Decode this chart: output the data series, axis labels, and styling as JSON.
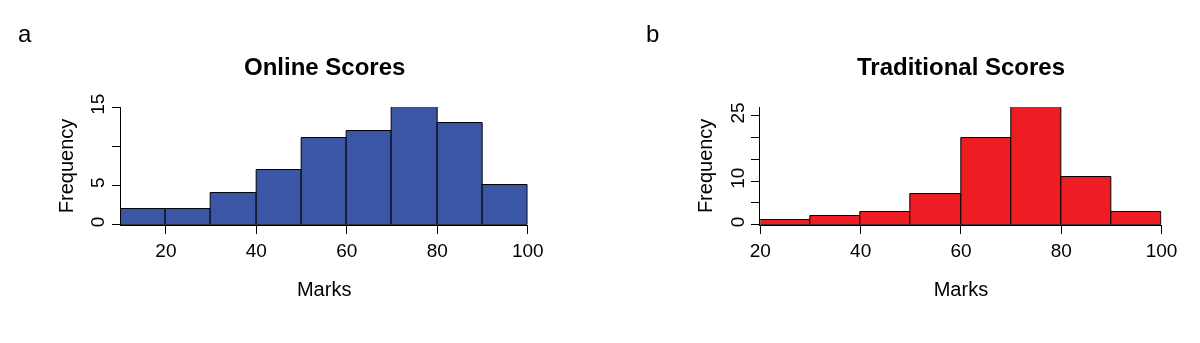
{
  "chart_data": [
    {
      "type": "histogram",
      "title": "Online Scores",
      "xlabel": "Marks",
      "ylabel": "Frequency",
      "annotations": [
        "a"
      ],
      "color": "#3a56a5",
      "bins": [
        10,
        20,
        30,
        40,
        50,
        60,
        70,
        80,
        90,
        100
      ],
      "values": [
        2,
        2,
        4,
        7,
        11,
        12,
        15,
        13,
        5
      ],
      "xlim": [
        10,
        100
      ],
      "xticks": [
        20,
        40,
        60,
        80,
        100
      ],
      "ylim": [
        0,
        15
      ],
      "yticks": [
        0,
        5,
        {
          "value": 10,
          "label": null
        },
        15
      ]
    },
    {
      "type": "histogram",
      "title": "Traditional Scores",
      "xlabel": "Marks",
      "ylabel": "Frequency",
      "annotations": [
        "b"
      ],
      "color": "#ee1d24",
      "bins": [
        20,
        30,
        40,
        50,
        60,
        70,
        80,
        90,
        100
      ],
      "values": [
        1,
        2,
        3,
        7,
        20,
        27,
        11,
        3
      ],
      "xlim": [
        20,
        100
      ],
      "xticks": [
        20,
        40,
        60,
        80,
        100
      ],
      "ylim": [
        0,
        27
      ],
      "yticks": [
        0,
        {
          "value": 5,
          "label": null
        },
        10,
        {
          "value": 15,
          "label": null
        },
        {
          "value": 20,
          "label": null
        },
        25
      ]
    }
  ]
}
